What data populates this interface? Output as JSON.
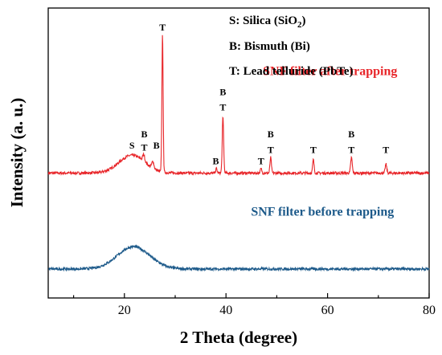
{
  "chart_data": {
    "type": "line",
    "title": "",
    "xlabel": "2 Theta (degree)",
    "ylabel": "Intensity (a. u.)",
    "xlim": [
      5,
      80
    ],
    "xticks": [
      20,
      40,
      60,
      80
    ],
    "y_ticks_shown": false,
    "grid": false,
    "legend": {
      "placement": "top-right",
      "entries": [
        {
          "prefix": "S: Silica (SiO",
          "sub": "2",
          "suffix": ")"
        },
        {
          "prefix": "B: Bismuth (Bi)",
          "sub": "",
          "suffix": ""
        },
        {
          "prefix": "T: Lead telluride (PbTe)",
          "sub": "",
          "suffix": ""
        }
      ]
    },
    "series": [
      {
        "name": "SNF filter after trapping",
        "color": "#e8262a",
        "baseline": 0.56,
        "hump": {
          "center": 21.5,
          "width": 3.6,
          "height": 0.08
        },
        "peaks": [
          {
            "x": 21.5,
            "h": 0.0,
            "w": 0.3
          },
          {
            "x": 23.8,
            "h": 0.03,
            "w": 0.3
          },
          {
            "x": 25.6,
            "h": 0.03,
            "w": 0.3
          },
          {
            "x": 27.5,
            "h": 0.62,
            "w": 0.17
          },
          {
            "x": 38.1,
            "h": 0.02,
            "w": 0.2
          },
          {
            "x": 39.4,
            "h": 0.25,
            "w": 0.2
          },
          {
            "x": 46.9,
            "h": 0.02,
            "w": 0.2
          },
          {
            "x": 48.8,
            "h": 0.07,
            "w": 0.2
          },
          {
            "x": 57.2,
            "h": 0.06,
            "w": 0.2
          },
          {
            "x": 64.7,
            "h": 0.07,
            "w": 0.22
          },
          {
            "x": 71.5,
            "h": 0.04,
            "w": 0.22
          }
        ]
      },
      {
        "name": "SNF filter before trapping",
        "color": "#1d5a8a",
        "baseline": 0.13,
        "hump": {
          "center": 21.8,
          "width": 4.5,
          "height": 0.1
        },
        "peaks": []
      }
    ],
    "annotations": [
      {
        "text": "S",
        "x": 21.5,
        "y": 0.67
      },
      {
        "text": "T",
        "x": 23.9,
        "y": 0.66
      },
      {
        "text": "B",
        "x": 23.9,
        "y": 0.72
      },
      {
        "text": "B",
        "x": 26.3,
        "y": 0.67
      },
      {
        "text": "T",
        "x": 27.5,
        "y": 1.2
      },
      {
        "text": "B",
        "x": 38.0,
        "y": 0.6
      },
      {
        "text": "T",
        "x": 39.4,
        "y": 0.84
      },
      {
        "text": "B",
        "x": 39.4,
        "y": 0.91
      },
      {
        "text": "T",
        "x": 46.9,
        "y": 0.6
      },
      {
        "text": "T",
        "x": 48.8,
        "y": 0.65
      },
      {
        "text": "B",
        "x": 48.8,
        "y": 0.72
      },
      {
        "text": "T",
        "x": 57.2,
        "y": 0.65
      },
      {
        "text": "T",
        "x": 64.7,
        "y": 0.65
      },
      {
        "text": "B",
        "x": 64.7,
        "y": 0.72
      },
      {
        "text": "T",
        "x": 71.5,
        "y": 0.65
      }
    ],
    "series_labels": [
      {
        "text": "SNF filter after trapping",
        "x": 60.5,
        "y": 1.0,
        "color": "#e8262a"
      },
      {
        "text": "SNF filter before trapping",
        "x": 59.0,
        "y": 0.37,
        "color": "#1d5a8a"
      }
    ]
  }
}
